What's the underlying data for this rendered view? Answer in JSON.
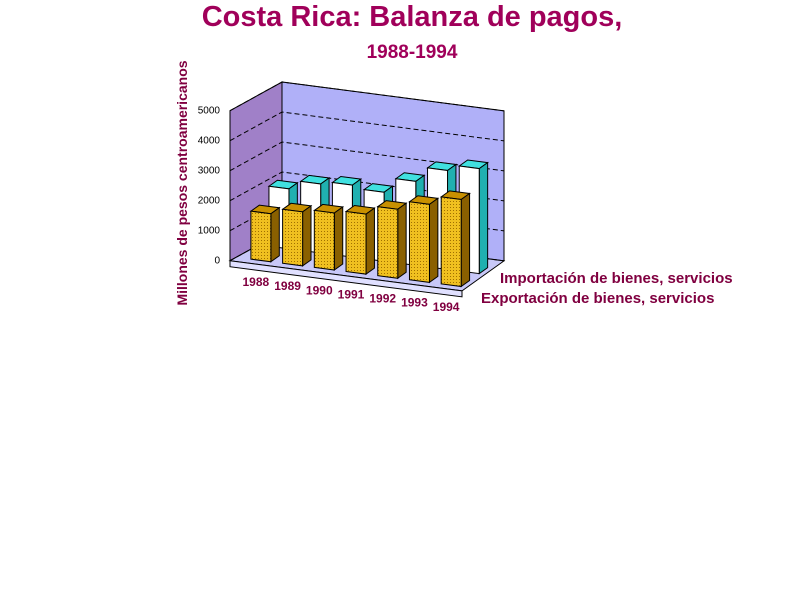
{
  "chart_data": {
    "type": "bar3d",
    "title": "Costa Rica: Balanza de pagos,",
    "subtitle": "1988-1994",
    "y_label": "Millones de pesos centroamericanos",
    "categories": [
      "1988",
      "1989",
      "1990",
      "1991",
      "1992",
      "1993",
      "1994"
    ],
    "series": [
      {
        "name": "Importación de bienes, servicios",
        "color": "#ffffff",
        "values": [
          2000,
          2300,
          2400,
          2300,
          2800,
          3300,
          3500
        ]
      },
      {
        "name": "Exportación de bienes, servicios",
        "color": "#e8b820",
        "values": [
          1600,
          1800,
          1900,
          2000,
          2300,
          2600,
          2900
        ]
      }
    ],
    "ylim": [
      0,
      5000
    ],
    "yticks": [
      0,
      1000,
      2000,
      3000,
      4000,
      5000
    ],
    "grid": true
  }
}
